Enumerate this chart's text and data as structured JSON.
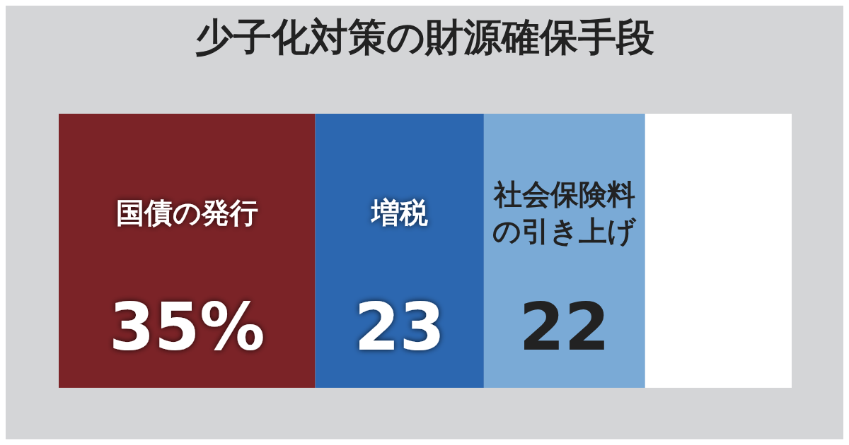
{
  "chart_data": {
    "type": "bar",
    "title": "少子化対策の財源確保手段",
    "orientation": "horizontal",
    "stacked": true,
    "categories": [
      null
    ],
    "series": [
      {
        "name": "国債の発行",
        "color": "#7b2327",
        "values": [
          35
        ],
        "value_labels": [
          "35%"
        ]
      },
      {
        "name": "増税",
        "color": "#2c67b0",
        "values": [
          23
        ],
        "value_labels": [
          "23"
        ]
      },
      {
        "name": "社会保険料の引き上げ",
        "color": "#7aaad6",
        "values": [
          22
        ],
        "value_labels": [
          "22"
        ]
      },
      {
        "color": "#ffffff",
        "values": [
          20
        ],
        "value_labels": [
          null
        ]
      }
    ]
  }
}
